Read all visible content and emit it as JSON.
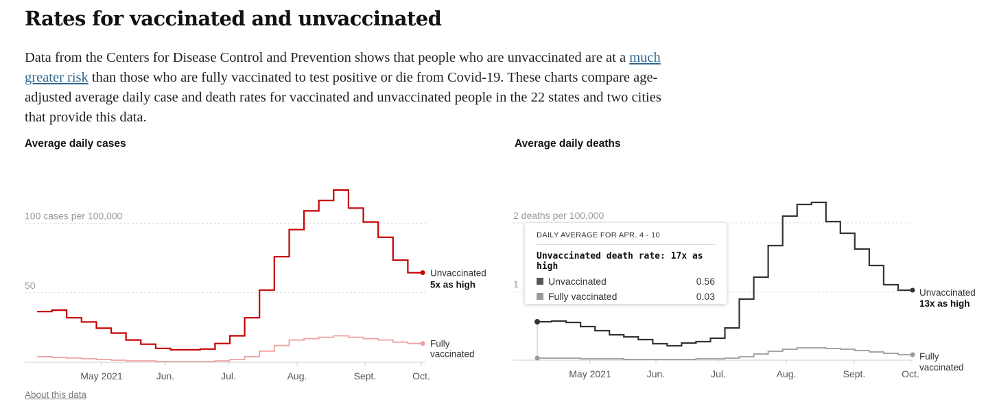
{
  "headline": "Rates for vaccinated and unvaccinated",
  "intro": {
    "before": "Data from the Centers for Disease Control and Prevention shows that people who are unvaccinated are at a ",
    "link": "much greater risk",
    "after": " than those who are fully vaccinated to test positive or die from Covid-19. These charts compare age-adjusted average daily case and death rates for vaccinated and unvaccinated people in the 22 states and two cities that provide this data."
  },
  "footer_link": "About this data",
  "colors": {
    "cases_unvax": "#c50000",
    "cases_vax": "#f0a0a0",
    "deaths_unvax": "#333333",
    "deaths_vax": "#9a9a9a"
  },
  "tooltip": {
    "header": "DAILY AVERAGE FOR APR. 4 - 10",
    "title": "Unvaccinated death rate: 17x as high",
    "rows": [
      {
        "label": "Unvaccinated",
        "value": "0.56",
        "color": "#555555"
      },
      {
        "label": "Fully vaccinated",
        "value": "0.03",
        "color": "#9a9a9a"
      }
    ]
  },
  "chart_data": [
    {
      "type": "line",
      "title": "Average daily cases",
      "week_starting": [
        "Apr. 4",
        "Apr. 11",
        "Apr. 18",
        "Apr. 25",
        "May 2",
        "May 9",
        "May 16",
        "May 23",
        "May 30",
        "Jun. 6",
        "Jun. 13",
        "Jun. 20",
        "Jun. 27",
        "Jul. 4",
        "Jul. 11",
        "Jul. 18",
        "Jul. 25",
        "Aug. 1",
        "Aug. 8",
        "Aug. 15",
        "Aug. 22",
        "Aug. 29",
        "Sep. 5",
        "Sep. 12",
        "Sep. 19",
        "Sep. 26"
      ],
      "x_ticks": [
        "May 2021",
        "Jun.",
        "Jul.",
        "Aug.",
        "Sept.",
        "Oct."
      ],
      "y_ticks": [
        {
          "value": 50,
          "label": "50"
        },
        {
          "value": 100,
          "label": "100 cases per 100,000"
        }
      ],
      "ylim": [
        0,
        125
      ],
      "series": [
        {
          "name": "Unvaccinated",
          "annotation": "5x as high",
          "values": [
            36.5,
            37.5,
            32,
            29,
            24.5,
            21,
            16,
            13,
            10,
            9,
            9,
            9.5,
            13.5,
            19,
            32,
            52,
            76,
            95.5,
            109,
            116.5,
            124,
            111,
            101,
            90,
            73.5,
            64.5
          ]
        },
        {
          "name": "Fully vaccinated",
          "values": [
            4,
            3.5,
            3,
            2.5,
            2,
            1.5,
            1,
            1,
            0.5,
            0.5,
            0.5,
            0.5,
            1,
            2,
            4,
            8,
            12,
            16,
            17,
            18,
            19,
            18,
            17,
            16,
            14.5,
            13.5
          ]
        }
      ]
    },
    {
      "type": "line",
      "title": "Average daily deaths",
      "week_starting": [
        "Apr. 4",
        "Apr. 11",
        "Apr. 18",
        "Apr. 25",
        "May 2",
        "May 9",
        "May 16",
        "May 23",
        "May 30",
        "Jun. 6",
        "Jun. 13",
        "Jun. 20",
        "Jun. 27",
        "Jul. 4",
        "Jul. 11",
        "Jul. 18",
        "Jul. 25",
        "Aug. 1",
        "Aug. 8",
        "Aug. 15",
        "Aug. 22",
        "Aug. 29",
        "Sep. 5",
        "Sep. 12",
        "Sep. 19",
        "Sep. 26"
      ],
      "x_ticks": [
        "May 2021",
        "Jun.",
        "Jul.",
        "Aug.",
        "Sept.",
        "Oct."
      ],
      "y_ticks": [
        {
          "value": 1,
          "label": "1"
        },
        {
          "value": 2,
          "label": "2 deaths per 100,000"
        }
      ],
      "ylim": [
        0,
        2.5
      ],
      "series": [
        {
          "name": "Unvaccinated",
          "annotation": "13x as high",
          "values": [
            0.56,
            0.57,
            0.55,
            0.49,
            0.43,
            0.37,
            0.34,
            0.3,
            0.24,
            0.21,
            0.25,
            0.27,
            0.32,
            0.47,
            0.89,
            1.21,
            1.67,
            2.1,
            2.27,
            2.3,
            2.02,
            1.85,
            1.62,
            1.38,
            1.1,
            1.02
          ]
        },
        {
          "name": "Fully vaccinated",
          "annotation": "Fully vaccinated",
          "values": [
            0.03,
            0.03,
            0.03,
            0.02,
            0.02,
            0.02,
            0.01,
            0.01,
            0.01,
            0.01,
            0.01,
            0.02,
            0.02,
            0.03,
            0.05,
            0.09,
            0.13,
            0.16,
            0.18,
            0.18,
            0.17,
            0.16,
            0.14,
            0.12,
            0.1,
            0.08
          ]
        }
      ]
    }
  ]
}
